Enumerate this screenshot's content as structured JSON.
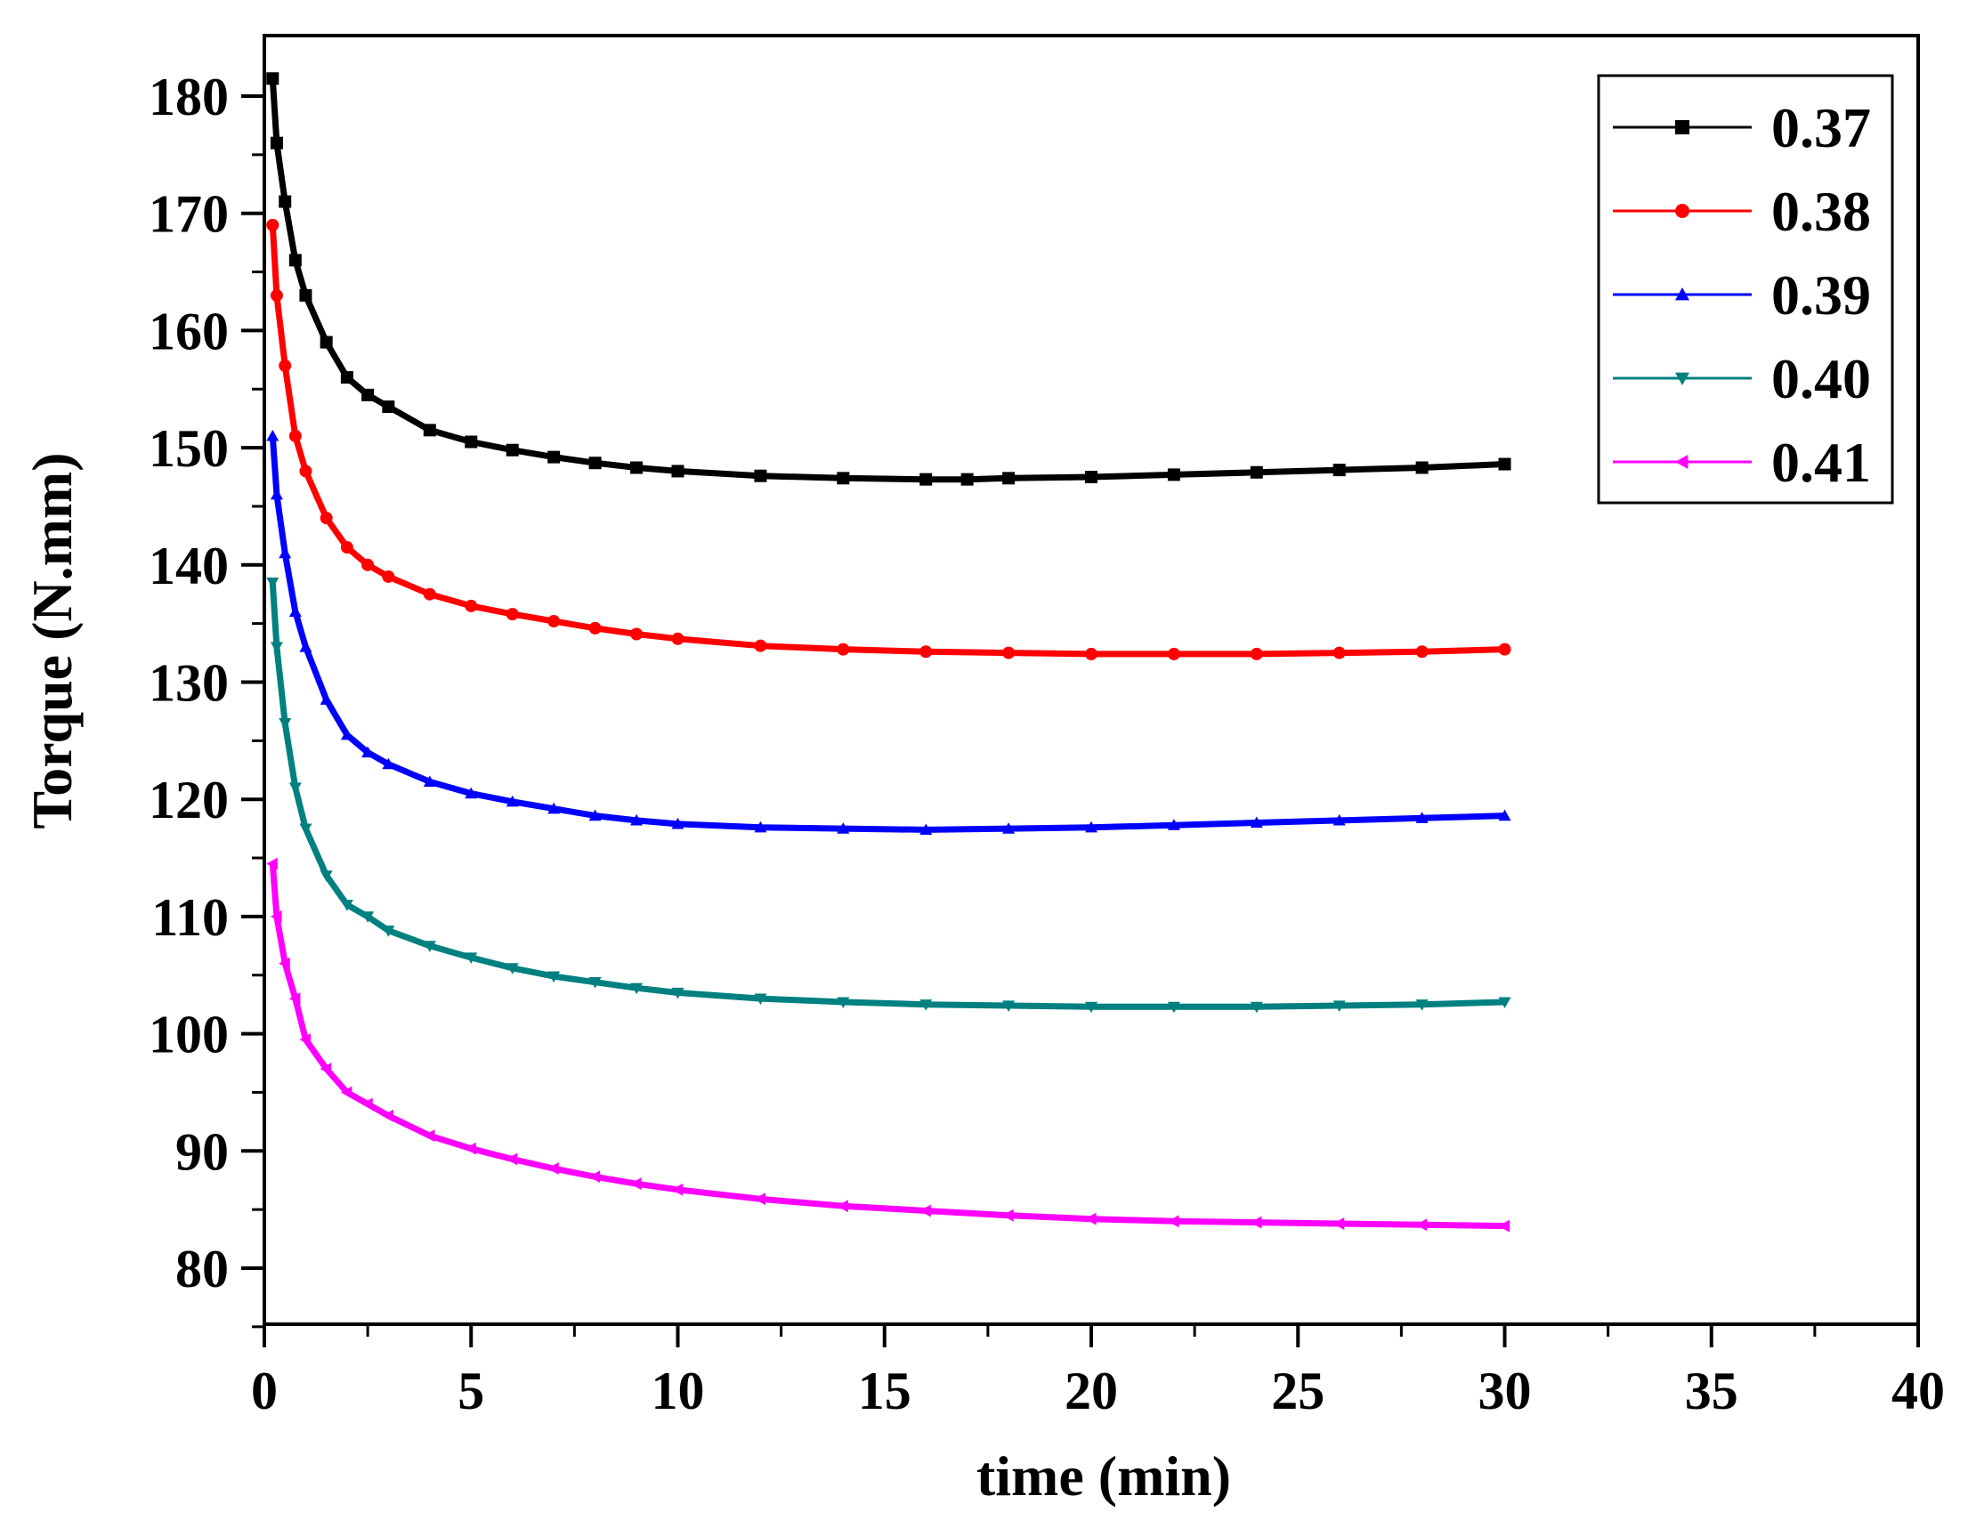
{
  "chart_data": {
    "type": "line",
    "title": "",
    "xlabel": "time (min)",
    "ylabel": "Torque (N.mm)",
    "xlim": [
      0,
      40
    ],
    "ylim": [
      75,
      185
    ],
    "xticks": [
      0,
      5,
      10,
      15,
      20,
      25,
      30,
      35,
      40
    ],
    "yticks": [
      80,
      90,
      100,
      110,
      120,
      130,
      140,
      150,
      160,
      170,
      180
    ],
    "grid": false,
    "legend_position": "top-right",
    "series": [
      {
        "name": "0.37",
        "color": "#000000",
        "marker": "square",
        "x": [
          0.2,
          0.3,
          0.5,
          0.75,
          1,
          1.5,
          2,
          2.5,
          3,
          4,
          5,
          6,
          7,
          8,
          9,
          10,
          12,
          14,
          16,
          17,
          18,
          20,
          22,
          24,
          26,
          28,
          30
        ],
        "y": [
          181.5,
          176,
          171,
          166,
          163,
          159,
          156,
          154.5,
          153.5,
          151.5,
          150.5,
          149.8,
          149.2,
          148.7,
          148.3,
          148,
          147.6,
          147.4,
          147.3,
          147.3,
          147.4,
          147.5,
          147.7,
          147.9,
          148.1,
          148.3,
          148.6
        ]
      },
      {
        "name": "0.38",
        "color": "#ff0000",
        "marker": "circle",
        "x": [
          0.2,
          0.3,
          0.5,
          0.75,
          1,
          1.5,
          2,
          2.5,
          3,
          4,
          5,
          6,
          7,
          8,
          9,
          10,
          12,
          14,
          16,
          18,
          20,
          22,
          24,
          26,
          28,
          30
        ],
        "y": [
          169,
          163,
          157,
          151,
          148,
          144,
          141.5,
          140,
          139,
          137.5,
          136.5,
          135.8,
          135.2,
          134.6,
          134.1,
          133.7,
          133.1,
          132.8,
          132.6,
          132.5,
          132.4,
          132.4,
          132.4,
          132.5,
          132.6,
          132.8
        ]
      },
      {
        "name": "0.39",
        "color": "#0000ff",
        "marker": "triangle-up",
        "x": [
          0.2,
          0.3,
          0.5,
          0.75,
          1,
          1.5,
          2,
          2.5,
          3,
          4,
          5,
          6,
          7,
          8,
          9,
          10,
          12,
          14,
          16,
          18,
          20,
          22,
          24,
          26,
          28,
          30
        ],
        "y": [
          151,
          146,
          141,
          136,
          133,
          128.5,
          125.5,
          124,
          123,
          121.5,
          120.5,
          119.8,
          119.2,
          118.6,
          118.2,
          117.9,
          117.6,
          117.5,
          117.4,
          117.5,
          117.6,
          117.8,
          118,
          118.2,
          118.4,
          118.6
        ]
      },
      {
        "name": "0.40",
        "color": "#008080",
        "marker": "triangle-down",
        "x": [
          0.2,
          0.3,
          0.5,
          0.75,
          1,
          1.5,
          2,
          2.5,
          3,
          4,
          5,
          6,
          7,
          8,
          9,
          10,
          12,
          14,
          16,
          18,
          20,
          22,
          24,
          26,
          28,
          30
        ],
        "y": [
          138.5,
          133,
          126.5,
          121,
          117.5,
          113.5,
          111,
          110,
          108.8,
          107.5,
          106.5,
          105.6,
          104.9,
          104.4,
          103.9,
          103.5,
          103,
          102.7,
          102.5,
          102.4,
          102.3,
          102.3,
          102.3,
          102.4,
          102.5,
          102.7
        ]
      },
      {
        "name": "0.41",
        "color": "#ff00ff",
        "marker": "triangle-left",
        "x": [
          0.2,
          0.3,
          0.5,
          0.75,
          1,
          1.5,
          2,
          2.5,
          3,
          4,
          5,
          6,
          7,
          8,
          9,
          10,
          12,
          14,
          16,
          18,
          20,
          22,
          24,
          26,
          28,
          30
        ],
        "y": [
          114.5,
          110,
          106,
          103,
          99.5,
          97,
          95,
          94,
          93,
          91.3,
          90.2,
          89.3,
          88.5,
          87.8,
          87.2,
          86.7,
          85.9,
          85.3,
          84.9,
          84.5,
          84.2,
          84,
          83.9,
          83.8,
          83.7,
          83.6
        ]
      }
    ]
  }
}
